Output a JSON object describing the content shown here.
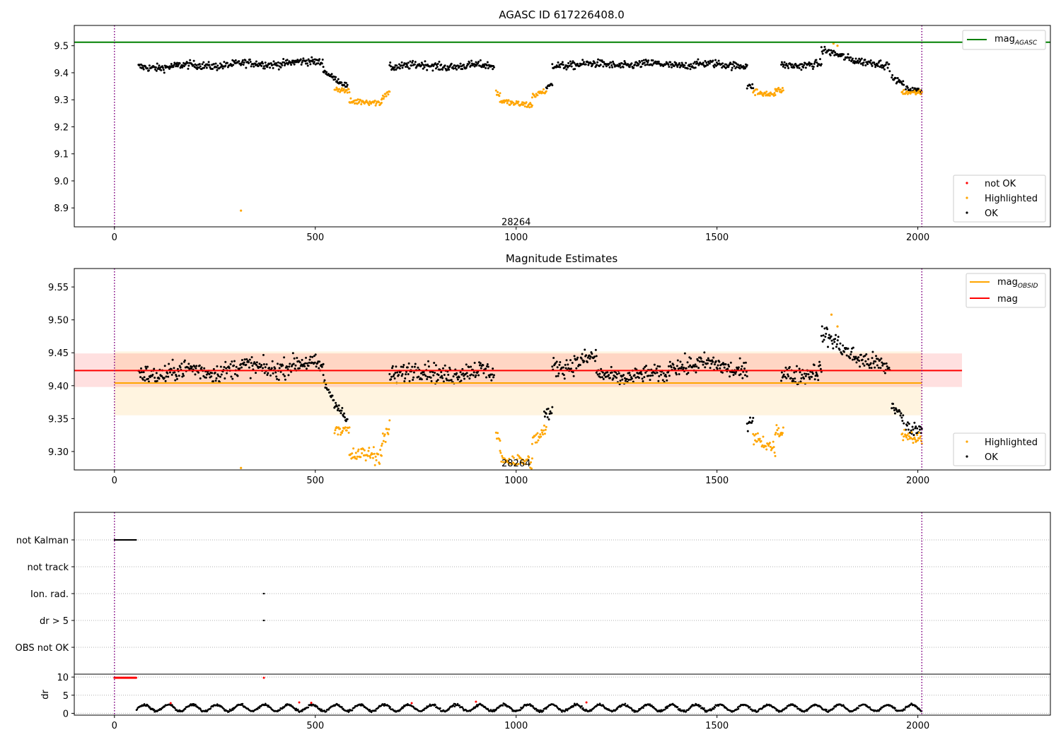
{
  "chart_data": [
    {
      "type": "scatter",
      "title": "AGASC ID 617226408.0",
      "xlim": [
        -100,
        2330
      ],
      "ylim": [
        8.83,
        9.575
      ],
      "x_ticks": [
        0,
        500,
        1000,
        1500,
        2000
      ],
      "y_ticks": [
        8.9,
        9.0,
        9.1,
        9.2,
        9.3,
        9.4,
        9.5
      ],
      "annotations": [
        {
          "text": "28264",
          "x": 1000,
          "y": 8.85
        }
      ],
      "vlines": [
        0,
        2010
      ],
      "hlines": [
        {
          "name": "mag_AGASC",
          "y": 9.513,
          "x_range": [
            -100,
            2330
          ],
          "color": "#008000"
        }
      ],
      "legend": [
        {
          "position": "top-right",
          "entries": [
            {
              "main": "mag",
              "sub": "AGASC",
              "color": "#008000",
              "kind": "line"
            }
          ]
        },
        {
          "position": "bottom-right",
          "entries": [
            {
              "main": "not OK",
              "color": "#ff0000",
              "kind": "point"
            },
            {
              "main": "Highlighted",
              "color": "#ffa500",
              "kind": "point"
            },
            {
              "main": "OK",
              "color": "#000000",
              "kind": "point"
            }
          ]
        }
      ],
      "series": [
        {
          "name": "OK",
          "color": "#000000",
          "segments": [
            [
              60,
              520,
              9.42,
              9.44,
              0.012
            ],
            [
              520,
              580,
              9.41,
              9.35,
              0.008
            ],
            [
              685,
              945,
              9.425,
              9.425,
              0.012
            ],
            [
              1075,
              1090,
              9.34,
              9.36,
              0.008
            ],
            [
              1090,
              1575,
              9.43,
              9.43,
              0.012
            ],
            [
              1575,
              1590,
              9.35,
              9.35,
              0.008
            ],
            [
              1660,
              1760,
              9.43,
              9.43,
              0.012
            ],
            [
              1760,
              1930,
              9.48,
              9.42,
              0.012
            ],
            [
              1935,
              1965,
              9.38,
              9.36,
              0.008
            ],
            [
              1970,
              2010,
              9.345,
              9.335,
              0.008
            ]
          ]
        },
        {
          "name": "Highlighted",
          "color": "#ffa500",
          "segments": [
            [
              548,
              585,
              9.345,
              9.33,
              0.008
            ],
            [
              585,
              665,
              9.29,
              9.29,
              0.01
            ],
            [
              665,
              685,
              9.31,
              9.335,
              0.01
            ],
            [
              950,
              960,
              9.33,
              9.32,
              0.008
            ],
            [
              960,
              1040,
              9.3,
              9.275,
              0.01
            ],
            [
              1040,
              1075,
              9.31,
              9.33,
              0.01
            ],
            [
              1590,
              1645,
              9.33,
              9.31,
              0.01
            ],
            [
              1645,
              1665,
              9.335,
              9.335,
              0.008
            ],
            [
              1960,
              2010,
              9.33,
              9.33,
              0.008
            ]
          ],
          "points": [
            [
              315,
              8.89
            ],
            [
              1790,
              9.508
            ],
            [
              1800,
              9.5
            ]
          ]
        },
        {
          "name": "not OK",
          "color": "#ff0000",
          "segments": [],
          "points": []
        }
      ]
    },
    {
      "type": "scatter",
      "title": "Magnitude Estimates",
      "xlim": [
        -100,
        2330
      ],
      "ylim": [
        9.272,
        9.578
      ],
      "x_ticks": [
        0,
        500,
        1000,
        1500,
        2000
      ],
      "y_ticks": [
        9.3,
        9.35,
        9.4,
        9.45,
        9.5,
        9.55
      ],
      "annotations": [
        {
          "text": "28264",
          "x": 1000,
          "y": 9.283
        }
      ],
      "vlines": [
        0,
        2010
      ],
      "bands": [
        {
          "name": "mag_OBSID range",
          "y": [
            9.355,
            9.452
          ],
          "x_range": [
            0,
            2010
          ],
          "color": "#ffa500",
          "opacity": 0.12
        },
        {
          "name": "mag range",
          "y": [
            9.398,
            9.449
          ],
          "x_range": [
            -100,
            2110
          ],
          "color": "#ff0000",
          "opacity": 0.12
        }
      ],
      "hlines": [
        {
          "name": "mag_OBSID",
          "y": 9.404,
          "x_range": [
            0,
            2010
          ],
          "color": "#ffa500"
        },
        {
          "name": "mag",
          "y": 9.423,
          "x_range": [
            -100,
            2110
          ],
          "color": "#ff0000"
        }
      ],
      "legend": [
        {
          "position": "top-right",
          "entries": [
            {
              "main": "mag",
              "sub": "OBSID",
              "color": "#ffa500",
              "kind": "line"
            },
            {
              "main": "mag",
              "color": "#ff0000",
              "kind": "line"
            }
          ]
        },
        {
          "position": "bottom-right",
          "entries": [
            {
              "main": "Highlighted",
              "color": "#ffa500",
              "kind": "point"
            },
            {
              "main": "OK",
              "color": "#000000",
              "kind": "point"
            }
          ]
        }
      ],
      "series": [
        {
          "name": "OK",
          "color": "#000000",
          "segments": [
            [
              60,
              520,
              9.418,
              9.432,
              0.012
            ],
            [
              520,
              580,
              9.41,
              9.345,
              0.008
            ],
            [
              685,
              945,
              9.42,
              9.42,
              0.012
            ],
            [
              1070,
              1090,
              9.355,
              9.36,
              0.008
            ],
            [
              1090,
              1200,
              9.43,
              9.44,
              0.012
            ],
            [
              1200,
              1380,
              9.415,
              9.415,
              0.01
            ],
            [
              1380,
              1575,
              9.435,
              9.425,
              0.012
            ],
            [
              1575,
              1590,
              9.345,
              9.35,
              0.008
            ],
            [
              1660,
              1760,
              9.42,
              9.42,
              0.012
            ],
            [
              1760,
              1930,
              9.475,
              9.42,
              0.012
            ],
            [
              1935,
              1965,
              9.37,
              9.35,
              0.008
            ],
            [
              1970,
              2010,
              9.34,
              9.335,
              0.008
            ]
          ]
        },
        {
          "name": "Highlighted",
          "color": "#ffa500",
          "segments": [
            [
              548,
              585,
              9.34,
              9.33,
              0.008
            ],
            [
              585,
              665,
              9.29,
              9.295,
              0.01
            ],
            [
              665,
              685,
              9.32,
              9.335,
              0.01
            ],
            [
              950,
              960,
              9.33,
              9.32,
              0.008
            ],
            [
              960,
              1040,
              9.295,
              9.28,
              0.01
            ],
            [
              1040,
              1075,
              9.31,
              9.33,
              0.01
            ],
            [
              1590,
              1645,
              9.32,
              9.3,
              0.01
            ],
            [
              1645,
              1665,
              9.33,
              9.33,
              0.008
            ],
            [
              1960,
              2010,
              9.33,
              9.32,
              0.008
            ]
          ],
          "points": [
            [
              315,
              9.275
            ],
            [
              1785,
              9.508
            ],
            [
              1800,
              9.49
            ]
          ]
        }
      ]
    },
    {
      "type": "scatter",
      "title": "",
      "xlim": [
        -100,
        2330
      ],
      "x_ticks": [
        0,
        500,
        1000,
        1500,
        2000
      ],
      "vlines": [
        0,
        2010
      ],
      "flag_rows": [
        "not Kalman",
        "not track",
        "Ion. rad.",
        "dr > 5",
        "OBS not OK"
      ],
      "flags": [
        {
          "row": "not Kalman",
          "x_range": [
            0,
            55
          ]
        },
        {
          "row": "Ion. rad.",
          "x_range": [
            371,
            373
          ]
        },
        {
          "row": "dr > 5",
          "x_range": [
            371,
            373
          ]
        }
      ],
      "dr_panel": {
        "ylabel": "dr",
        "ylim": [
          -0.5,
          10.8
        ],
        "y_ticks": [
          0,
          5,
          10
        ],
        "ok_segment": [
          55,
          2010,
          0.5,
          2.8
        ],
        "not_ok": {
          "capped_range": [
            0,
            55
          ],
          "capped_value": 9.8,
          "points": [
            [
              372,
              9.8
            ],
            [
              140,
              2.8
            ],
            [
              460,
              3.0
            ],
            [
              490,
              2.9
            ],
            [
              740,
              2.8
            ],
            [
              900,
              3.2
            ],
            [
              1175,
              3.0
            ]
          ]
        }
      }
    }
  ]
}
